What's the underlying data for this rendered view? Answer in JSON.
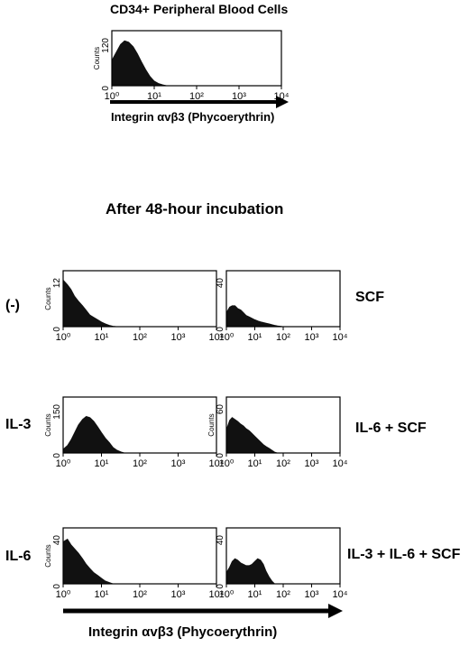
{
  "figure": {
    "top_title": "CD34+ Peripheral Blood Cells",
    "top_xlabel": "Integrin αvβ3 (Phycoerythrin)",
    "mid_title": "After 48-hour incubation",
    "bottom_xlabel": "Integrin αvβ3 (Phycoerythrin)"
  },
  "chart_data": [
    {
      "id": "p0",
      "type": "area",
      "title": "CD34+ Peripheral Blood Cells",
      "ylabel": "Counts",
      "ylim": [
        0,
        120
      ],
      "xscale": "log",
      "xlim": [
        1,
        10000
      ],
      "xticks": [
        "10⁰",
        "10¹",
        "10²",
        "10³",
        "10⁴"
      ],
      "x": [
        1,
        1.3,
        1.6,
        2,
        2.5,
        3.2,
        4,
        5,
        6.3,
        8,
        10,
        12.6,
        16,
        20
      ],
      "y": [
        55,
        75,
        90,
        98,
        95,
        85,
        70,
        52,
        35,
        20,
        10,
        5,
        2,
        0
      ]
    },
    {
      "id": "p1",
      "type": "area",
      "label": "(-)",
      "ylabel": "Counts",
      "ylim": [
        0,
        12
      ],
      "xscale": "log",
      "xlim": [
        1,
        10000
      ],
      "xticks": [
        "10⁰",
        "10¹",
        "10²",
        "10³",
        "10⁴"
      ],
      "x": [
        1,
        1.3,
        1.6,
        2,
        2.5,
        3.2,
        4,
        5,
        6.3,
        8,
        10,
        12.6,
        16,
        20,
        25
      ],
      "y": [
        10,
        9,
        8,
        6.5,
        5.5,
        4.5,
        3.5,
        2.5,
        2,
        1.5,
        1,
        0.6,
        0.3,
        0.1,
        0
      ]
    },
    {
      "id": "p2",
      "type": "area",
      "label": "SCF",
      "ylabel": "",
      "ylim": [
        0,
        40
      ],
      "xscale": "log",
      "xlim": [
        1,
        10000
      ],
      "xticks": [
        "10⁰",
        "10¹",
        "10²",
        "10³",
        "10⁴"
      ],
      "x": [
        1,
        1.3,
        1.6,
        2,
        2.5,
        3.2,
        4,
        5,
        6.3,
        8,
        10,
        13,
        16,
        20,
        25,
        32,
        40,
        50,
        63,
        80,
        100
      ],
      "y": [
        10,
        14,
        15,
        15,
        13,
        12,
        10,
        8,
        7,
        6,
        5,
        4,
        3.5,
        3,
        2.5,
        2,
        1.5,
        1,
        0.6,
        0.3,
        0
      ]
    },
    {
      "id": "p3",
      "type": "area",
      "label": "IL-3",
      "ylabel": "Counts",
      "ylim": [
        0,
        150
      ],
      "xscale": "log",
      "xlim": [
        1,
        10000
      ],
      "xticks": [
        "10⁰",
        "10¹",
        "10²",
        "10³",
        "10⁴"
      ],
      "x": [
        1,
        1.3,
        1.6,
        2,
        2.5,
        3.2,
        4,
        5,
        6.3,
        8,
        10,
        12.6,
        16,
        20,
        25,
        32,
        40
      ],
      "y": [
        10,
        20,
        35,
        55,
        75,
        90,
        98,
        95,
        85,
        70,
        55,
        40,
        28,
        15,
        8,
        3,
        0
      ]
    },
    {
      "id": "p4",
      "type": "area",
      "label": "IL-6 + SCF",
      "ylabel": "Counts",
      "ylim": [
        0,
        60
      ],
      "xscale": "log",
      "xlim": [
        1,
        10000
      ],
      "xticks": [
        "10⁰",
        "10¹",
        "10²",
        "10³",
        "10⁴"
      ],
      "x": [
        1,
        1.3,
        1.6,
        2,
        2.5,
        3.2,
        4,
        5,
        6.3,
        8,
        10,
        12.6,
        16,
        20,
        25,
        32,
        40,
        50,
        63
      ],
      "y": [
        25,
        35,
        38,
        36,
        34,
        31,
        29,
        26,
        24,
        21,
        18,
        15,
        12,
        9,
        7,
        5,
        3,
        1,
        0
      ]
    },
    {
      "id": "p5",
      "type": "area",
      "label": "IL-6",
      "ylabel": "Counts",
      "ylim": [
        0,
        40
      ],
      "xscale": "log",
      "xlim": [
        1,
        10000
      ],
      "xticks": [
        "10⁰",
        "10¹",
        "10²",
        "10³",
        "10⁴"
      ],
      "x": [
        1,
        1.3,
        1.6,
        2,
        2.5,
        3.2,
        4,
        5,
        6.3,
        8,
        10,
        12.6,
        16,
        20
      ],
      "y": [
        30,
        32,
        28,
        25,
        22,
        18,
        14,
        11,
        8,
        6,
        4,
        2,
        1,
        0
      ]
    },
    {
      "id": "p6",
      "type": "area",
      "label": "IL-3 + IL-6 + SCF",
      "ylabel": "",
      "ylim": [
        0,
        40
      ],
      "xscale": "log",
      "xlim": [
        1,
        10000
      ],
      "xticks": [
        "10⁰",
        "10¹",
        "10²",
        "10³",
        "10⁴"
      ],
      "x": [
        1,
        1.3,
        1.6,
        2,
        2.5,
        3.2,
        4,
        5,
        6.3,
        8,
        10,
        12.6,
        16,
        20,
        25,
        32,
        40,
        50
      ],
      "y": [
        8,
        12,
        16,
        18,
        17,
        15,
        14,
        13,
        13,
        14,
        16,
        18,
        17,
        14,
        9,
        5,
        2,
        0
      ]
    }
  ]
}
